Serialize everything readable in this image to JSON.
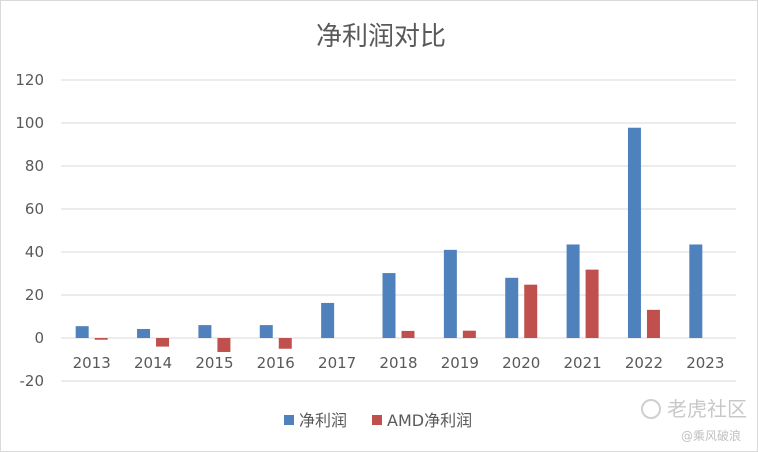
{
  "chart_data": {
    "type": "bar",
    "title": "净利润对比",
    "xlabel": "",
    "ylabel": "",
    "categories": [
      "2013",
      "2014",
      "2015",
      "2016",
      "2017",
      "2018",
      "2019",
      "2020",
      "2021",
      "2022",
      "2023"
    ],
    "series": [
      {
        "name": "净利润",
        "color": "#4f81bd",
        "values": [
          5.5,
          4.2,
          6.0,
          6.0,
          16.3,
          30.2,
          41.0,
          28.0,
          43.5,
          97.8,
          43.5
        ]
      },
      {
        "name": "AMD净利润",
        "color": "#c0504d",
        "values": [
          -0.8,
          -4.0,
          -6.5,
          -5.0,
          0,
          3.3,
          3.4,
          24.8,
          31.8,
          13.1,
          0
        ]
      }
    ],
    "ylim": [
      -20,
      120
    ],
    "yticks": [
      -20,
      0,
      20,
      40,
      60,
      80,
      100,
      120
    ],
    "ytick_labels": [
      "-20",
      "0",
      "20",
      "40",
      "60",
      "80",
      "100",
      "120"
    ],
    "grid": true,
    "legend": "bottom"
  },
  "watermark": {
    "brand": "老虎社区",
    "user": "@乘风破浪"
  }
}
